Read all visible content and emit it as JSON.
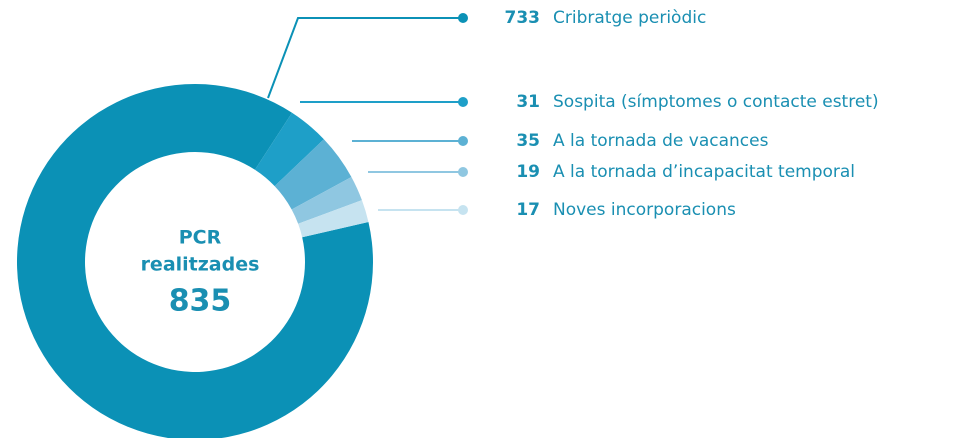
{
  "chart_data": {
    "type": "donut",
    "center_label": [
      "PCR",
      "realitzades"
    ],
    "center_value": 835,
    "categories": [
      "Cribratge periòdic",
      "Sospita (símptomes o contacte estret)",
      "A la tornada de vacances",
      "A la tornada d’incapacitat temporal",
      "Noves incorporacions"
    ],
    "values": [
      733,
      31,
      35,
      19,
      17
    ],
    "colors": [
      "#0b91b6",
      "#1e9fc8",
      "#5cb1d4",
      "#8fc7e1",
      "#c6e3f0"
    ]
  }
}
